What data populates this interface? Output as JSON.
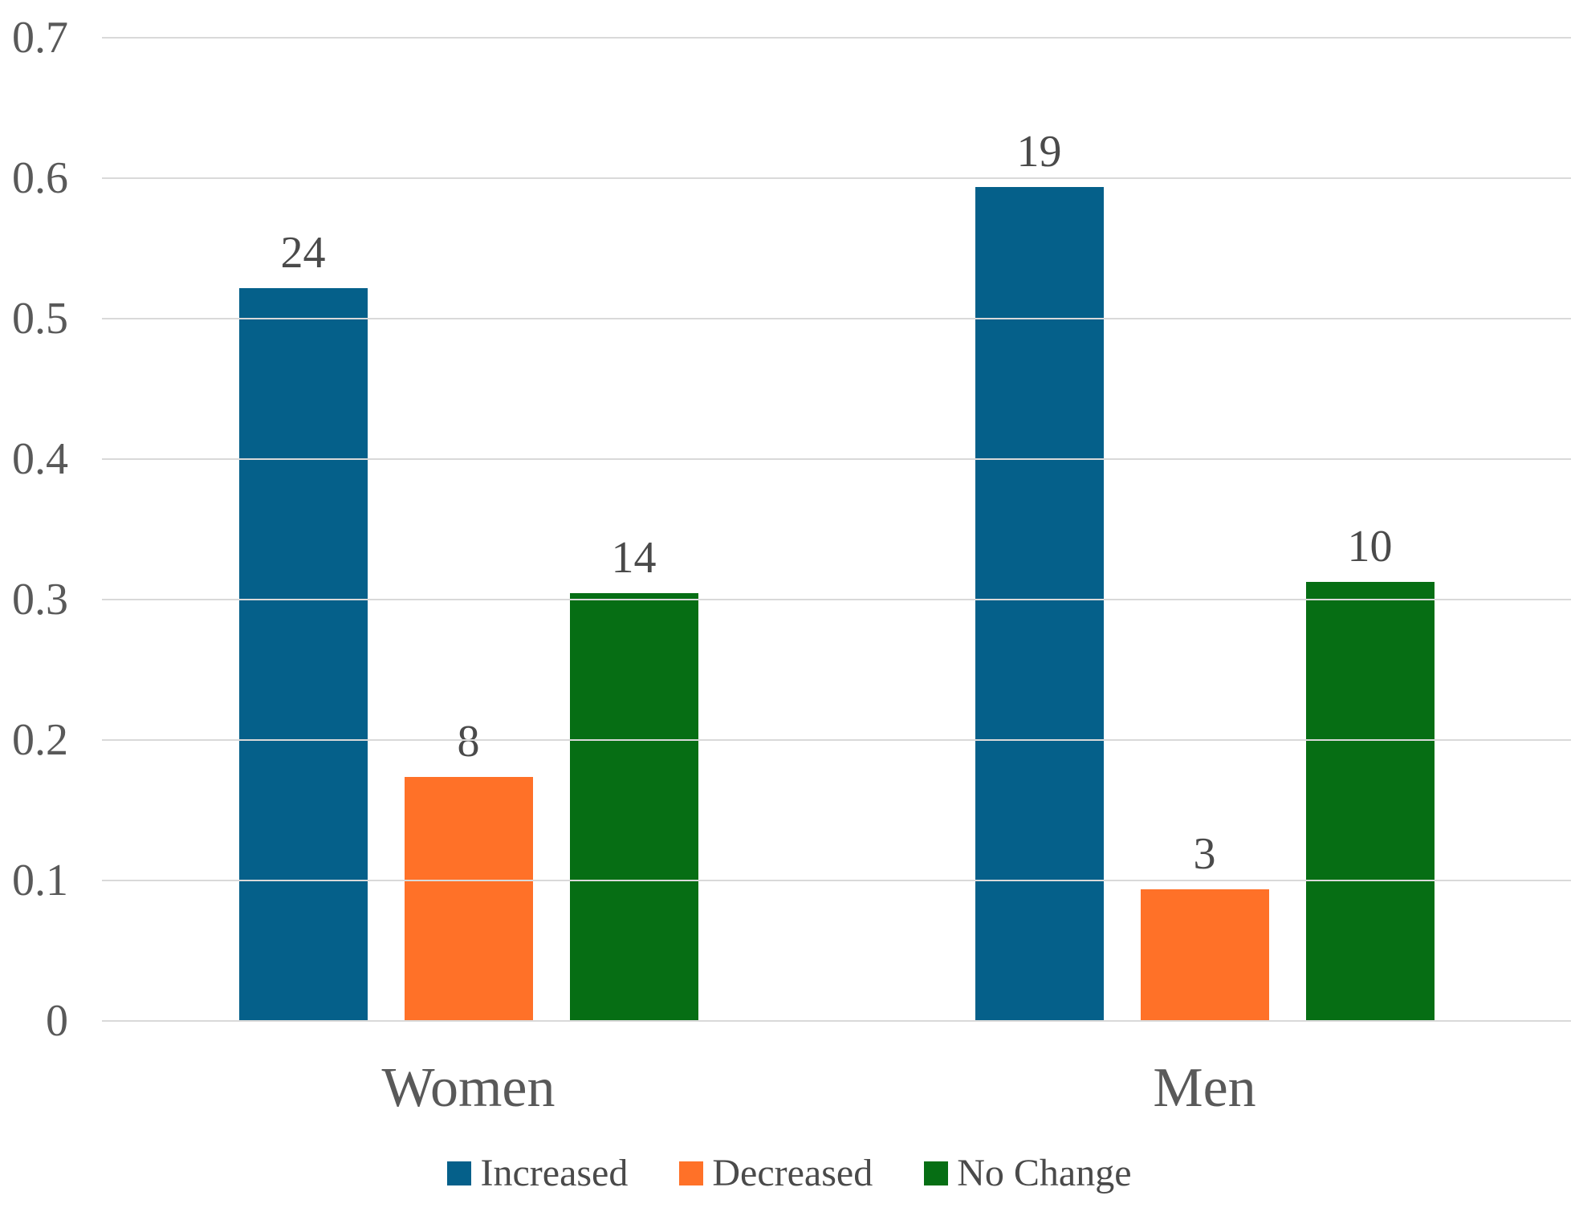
{
  "chart_data": {
    "type": "bar",
    "title": "",
    "xlabel": "",
    "ylabel": "",
    "categories": [
      "Women",
      "Men"
    ],
    "series": [
      {
        "name": "Increased",
        "color": "#05608A",
        "values": [
          24,
          19
        ],
        "fractions": [
          0.5217,
          0.5938
        ]
      },
      {
        "name": "Decreased",
        "color": "#FF7128",
        "values": [
          8,
          3
        ],
        "fractions": [
          0.1739,
          0.0938
        ]
      },
      {
        "name": "No Change",
        "color": "#066E14",
        "values": [
          14,
          10
        ],
        "fractions": [
          0.3043,
          0.3125
        ]
      }
    ],
    "ylim": [
      0,
      0.7
    ],
    "yticks": [
      0,
      0.1,
      0.2,
      0.3,
      0.4,
      0.5,
      0.6,
      0.7
    ],
    "ytick_labels": [
      "0",
      "0.1",
      "0.2",
      "0.3",
      "0.4",
      "0.5",
      "0.6",
      "0.7"
    ],
    "grid": true,
    "legend_position": "bottom",
    "colors": {
      "background": "#FFFFFF",
      "gridline": "#D9D9D9",
      "tick_text": "#595959",
      "category_text": "#595959",
      "value_text": "#4a4a4a",
      "legend_text": "#4a4a4a"
    }
  }
}
